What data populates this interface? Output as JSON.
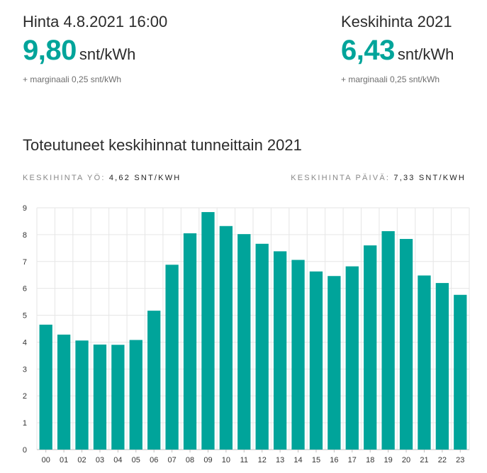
{
  "current": {
    "label": "Hinta 4.8.2021 16:00",
    "value": "9,80",
    "unit": "snt/kWh",
    "note": "+ marginaali 0,25 snt/kWh"
  },
  "average": {
    "label": "Keskihinta 2021",
    "value": "6,43",
    "unit": "snt/kWh",
    "note": "+ marginaali 0,25 snt/kWh"
  },
  "night_avg": {
    "label": "KESKIHINTA YÖ:",
    "value": "4,62 SNT/KWH"
  },
  "day_avg": {
    "label": "KESKIHINTA PÄIVÄ:",
    "value": "7,33 SNT/KWH"
  },
  "colors": {
    "accent": "#00a49a",
    "grid": "#e6e6e6"
  },
  "chart_data": {
    "type": "bar",
    "title": "Toteutuneet keskihinnat tunneittain 2021",
    "xlabel": "",
    "ylabel": "",
    "ylim": [
      0,
      9
    ],
    "yticks": [
      "0",
      "1",
      "2",
      "3",
      "4",
      "5",
      "6",
      "7",
      "8",
      "9"
    ],
    "categories": [
      "00",
      "01",
      "02",
      "03",
      "04",
      "05",
      "06",
      "07",
      "08",
      "09",
      "10",
      "11",
      "12",
      "13",
      "14",
      "15",
      "16",
      "17",
      "18",
      "19",
      "20",
      "21",
      "22",
      "23"
    ],
    "values": [
      4.65,
      4.28,
      4.06,
      3.91,
      3.9,
      4.08,
      5.17,
      6.88,
      8.05,
      8.84,
      8.32,
      8.02,
      7.66,
      7.38,
      7.06,
      6.63,
      6.46,
      6.82,
      7.6,
      8.13,
      7.84,
      6.48,
      6.2,
      5.76
    ],
    "grid": true
  }
}
